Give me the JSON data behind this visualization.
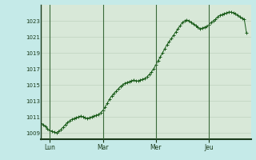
{
  "title": "",
  "yticks": [
    1009,
    1011,
    1013,
    1015,
    1017,
    1019,
    1021,
    1023
  ],
  "ylim": [
    1008.2,
    1025.0
  ],
  "xlim": [
    0,
    95
  ],
  "xtick_positions": [
    4,
    28,
    52,
    76
  ],
  "xtick_labels": [
    "Lun",
    "Mar",
    "Mer",
    "Jeu"
  ],
  "vline_positions": [
    4,
    28,
    52,
    76
  ],
  "line_color": "#1a5c1a",
  "marker": "+",
  "marker_color": "#1a5c1a",
  "bg_color": "#c5eae8",
  "plot_bg_color": "#d8e8d8",
  "grid_color": "#b8cdb8",
  "axis_color": "#2d5a2d",
  "tick_color": "#1a3a1a",
  "pressure_values": [
    1010.2,
    1010.0,
    1009.8,
    1009.5,
    1009.3,
    1009.2,
    1009.1,
    1009.0,
    1009.2,
    1009.4,
    1009.7,
    1010.0,
    1010.3,
    1010.5,
    1010.7,
    1010.8,
    1010.9,
    1011.0,
    1011.1,
    1011.0,
    1010.9,
    1010.8,
    1010.9,
    1011.0,
    1011.1,
    1011.2,
    1011.3,
    1011.5,
    1011.8,
    1012.2,
    1012.7,
    1013.2,
    1013.6,
    1013.9,
    1014.2,
    1014.5,
    1014.8,
    1015.0,
    1015.2,
    1015.3,
    1015.4,
    1015.5,
    1015.6,
    1015.5,
    1015.5,
    1015.6,
    1015.7,
    1015.8,
    1016.0,
    1016.3,
    1016.6,
    1017.0,
    1017.5,
    1018.0,
    1018.5,
    1019.0,
    1019.5,
    1020.0,
    1020.4,
    1020.8,
    1021.2,
    1021.6,
    1022.0,
    1022.4,
    1022.8,
    1023.0,
    1023.1,
    1023.0,
    1022.8,
    1022.6,
    1022.4,
    1022.2,
    1022.0,
    1022.1,
    1022.2,
    1022.3,
    1022.5,
    1022.8,
    1023.0,
    1023.2,
    1023.5,
    1023.7,
    1023.8,
    1023.9,
    1024.0,
    1024.1,
    1024.1,
    1024.0,
    1023.9,
    1023.7,
    1023.5,
    1023.3,
    1023.2,
    1021.5
  ]
}
